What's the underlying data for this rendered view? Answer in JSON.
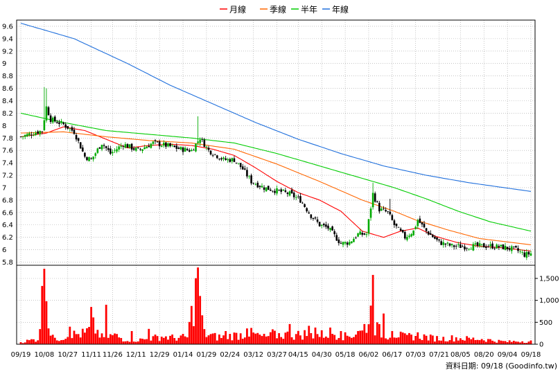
{
  "legend": [
    {
      "label": "月線",
      "color": "#ff0000"
    },
    {
      "label": "季線",
      "color": "#ff6600"
    },
    {
      "label": "半年",
      "color": "#00cc00"
    },
    {
      "label": "年線",
      "color": "#1f6fdc"
    }
  ],
  "source_note": "資料日期: 09/18 (Goodinfo.tw)",
  "colors": {
    "up": "#00aa00",
    "down": "#000000",
    "volume": "#ff0000",
    "grid": "#a0a0a0",
    "frame": "#000000"
  },
  "chart_data": {
    "type": "candlestick+volume",
    "price_axis": {
      "ticks": [
        5.8,
        6,
        6.2,
        6.4,
        6.6,
        6.8,
        7,
        7.2,
        7.4,
        7.6,
        7.8,
        8,
        8.2,
        8.4,
        8.6,
        8.8,
        9,
        9.2,
        9.4,
        9.6
      ],
      "ylim": [
        5.75,
        9.7
      ]
    },
    "volume_axis": {
      "ticks": [
        0,
        500,
        1000,
        1500
      ],
      "tick_labels": [
        "0",
        "500",
        "1,000",
        "1,500"
      ],
      "ylim": [
        0,
        1800
      ]
    },
    "x_tick_labels": [
      "09/19",
      "10/08",
      "10/27",
      "11/11",
      "11/26",
      "12/11",
      "12/29",
      "01/14",
      "01/29",
      "02/24",
      "03/12",
      "03/27",
      "04/15",
      "04/30",
      "05/18",
      "06/02",
      "06/17",
      "07/03",
      "07/21",
      "08/05",
      "08/20",
      "09/04",
      "09/18"
    ],
    "sessions": 240,
    "ma_series": [
      {
        "name": "月線",
        "points": [
          [
            0,
            7.82
          ],
          [
            12,
            7.88
          ],
          [
            20,
            7.98
          ],
          [
            30,
            7.92
          ],
          [
            40,
            7.78
          ],
          [
            50,
            7.64
          ],
          [
            60,
            7.68
          ],
          [
            70,
            7.7
          ],
          [
            80,
            7.68
          ],
          [
            90,
            7.62
          ],
          [
            100,
            7.52
          ],
          [
            110,
            7.32
          ],
          [
            120,
            7.1
          ],
          [
            130,
            6.92
          ],
          [
            140,
            6.8
          ],
          [
            150,
            6.62
          ],
          [
            160,
            6.3
          ],
          [
            170,
            6.2
          ],
          [
            178,
            6.3
          ],
          [
            186,
            6.35
          ],
          [
            194,
            6.22
          ],
          [
            204,
            6.12
          ],
          [
            214,
            6.06
          ],
          [
            226,
            6.03
          ],
          [
            239,
            5.98
          ]
        ]
      },
      {
        "name": "季線",
        "points": [
          [
            0,
            7.88
          ],
          [
            20,
            7.9
          ],
          [
            40,
            7.82
          ],
          [
            60,
            7.76
          ],
          [
            80,
            7.72
          ],
          [
            100,
            7.62
          ],
          [
            120,
            7.38
          ],
          [
            140,
            7.1
          ],
          [
            160,
            6.8
          ],
          [
            175,
            6.62
          ],
          [
            185,
            6.48
          ],
          [
            200,
            6.32
          ],
          [
            215,
            6.18
          ],
          [
            239,
            6.08
          ]
        ]
      },
      {
        "name": "半年",
        "points": [
          [
            0,
            8.2
          ],
          [
            20,
            8.05
          ],
          [
            40,
            7.92
          ],
          [
            60,
            7.86
          ],
          [
            80,
            7.8
          ],
          [
            100,
            7.72
          ],
          [
            120,
            7.55
          ],
          [
            140,
            7.35
          ],
          [
            160,
            7.15
          ],
          [
            175,
            7.0
          ],
          [
            190,
            6.82
          ],
          [
            205,
            6.62
          ],
          [
            220,
            6.45
          ],
          [
            239,
            6.3
          ]
        ]
      },
      {
        "name": "年線",
        "points": [
          [
            0,
            9.65
          ],
          [
            25,
            9.4
          ],
          [
            50,
            9.0
          ],
          [
            70,
            8.65
          ],
          [
            90,
            8.35
          ],
          [
            110,
            8.05
          ],
          [
            130,
            7.78
          ],
          [
            150,
            7.55
          ],
          [
            170,
            7.35
          ],
          [
            190,
            7.2
          ],
          [
            210,
            7.08
          ],
          [
            239,
            6.94
          ]
        ]
      }
    ],
    "price_anchors": [
      [
        0,
        7.82
      ],
      [
        6,
        7.88
      ],
      [
        10,
        7.92
      ],
      [
        12,
        8.3
      ],
      [
        14,
        8.1
      ],
      [
        20,
        8.02
      ],
      [
        25,
        7.9
      ],
      [
        30,
        7.5
      ],
      [
        33,
        7.45
      ],
      [
        38,
        7.72
      ],
      [
        42,
        7.55
      ],
      [
        48,
        7.7
      ],
      [
        55,
        7.6
      ],
      [
        62,
        7.72
      ],
      [
        68,
        7.68
      ],
      [
        75,
        7.62
      ],
      [
        80,
        7.6
      ],
      [
        84,
        7.8
      ],
      [
        88,
        7.6
      ],
      [
        95,
        7.45
      ],
      [
        100,
        7.45
      ],
      [
        104,
        7.3
      ],
      [
        108,
        7.1
      ],
      [
        114,
        7.0
      ],
      [
        120,
        6.95
      ],
      [
        126,
        6.9
      ],
      [
        131,
        6.8
      ],
      [
        136,
        6.55
      ],
      [
        140,
        6.4
      ],
      [
        144,
        6.35
      ],
      [
        150,
        6.1
      ],
      [
        154,
        6.12
      ],
      [
        158,
        6.25
      ],
      [
        162,
        6.25
      ],
      [
        165,
        6.9
      ],
      [
        168,
        6.65
      ],
      [
        172,
        6.6
      ],
      [
        175,
        6.4
      ],
      [
        180,
        6.2
      ],
      [
        184,
        6.3
      ],
      [
        186,
        6.48
      ],
      [
        190,
        6.3
      ],
      [
        196,
        6.12
      ],
      [
        202,
        6.06
      ],
      [
        208,
        6.05
      ],
      [
        214,
        6.06
      ],
      [
        220,
        6.06
      ],
      [
        226,
        6.04
      ],
      [
        232,
        6.0
      ],
      [
        236,
        5.92
      ],
      [
        239,
        5.94
      ]
    ],
    "price_spikes": [
      [
        11,
        8.62
      ],
      [
        12,
        8.6
      ],
      [
        83,
        8.15
      ],
      [
        165,
        7.08
      ],
      [
        173,
        6.82
      ],
      [
        186,
        6.5
      ]
    ],
    "volume_anchors": [
      [
        0,
        60
      ],
      [
        8,
        150
      ],
      [
        11,
        1720
      ],
      [
        13,
        550
      ],
      [
        16,
        120
      ],
      [
        22,
        260
      ],
      [
        30,
        300
      ],
      [
        34,
        500
      ],
      [
        38,
        200
      ],
      [
        44,
        250
      ],
      [
        48,
        150
      ],
      [
        55,
        120
      ],
      [
        60,
        150
      ],
      [
        66,
        220
      ],
      [
        72,
        180
      ],
      [
        78,
        200
      ],
      [
        83,
        1750
      ],
      [
        86,
        300
      ],
      [
        92,
        200
      ],
      [
        100,
        250
      ],
      [
        108,
        300
      ],
      [
        114,
        200
      ],
      [
        122,
        280
      ],
      [
        128,
        250
      ],
      [
        134,
        300
      ],
      [
        140,
        260
      ],
      [
        146,
        320
      ],
      [
        152,
        220
      ],
      [
        160,
        350
      ],
      [
        164,
        800
      ],
      [
        165,
        1580
      ],
      [
        166,
        500
      ],
      [
        170,
        250
      ],
      [
        175,
        300
      ],
      [
        180,
        200
      ],
      [
        186,
        250
      ],
      [
        192,
        180
      ],
      [
        198,
        160
      ],
      [
        204,
        180
      ],
      [
        210,
        150
      ],
      [
        216,
        150
      ],
      [
        222,
        100
      ],
      [
        228,
        70
      ],
      [
        234,
        90
      ],
      [
        239,
        80
      ]
    ],
    "volume_spikes": [
      [
        12,
        980
      ],
      [
        11,
        1720
      ],
      [
        83,
        1750
      ],
      [
        84,
        1100
      ],
      [
        165,
        1580
      ],
      [
        164,
        880
      ],
      [
        170,
        700
      ],
      [
        33,
        850
      ],
      [
        40,
        900
      ],
      [
        52,
        300
      ],
      [
        23,
        400
      ],
      [
        60,
        350
      ],
      [
        96,
        300
      ],
      [
        106,
        360
      ],
      [
        118,
        340
      ],
      [
        126,
        460
      ],
      [
        135,
        420
      ],
      [
        138,
        380
      ],
      [
        145,
        380
      ],
      [
        150,
        300
      ],
      [
        158,
        300
      ],
      [
        161,
        460
      ],
      [
        174,
        300
      ]
    ]
  }
}
